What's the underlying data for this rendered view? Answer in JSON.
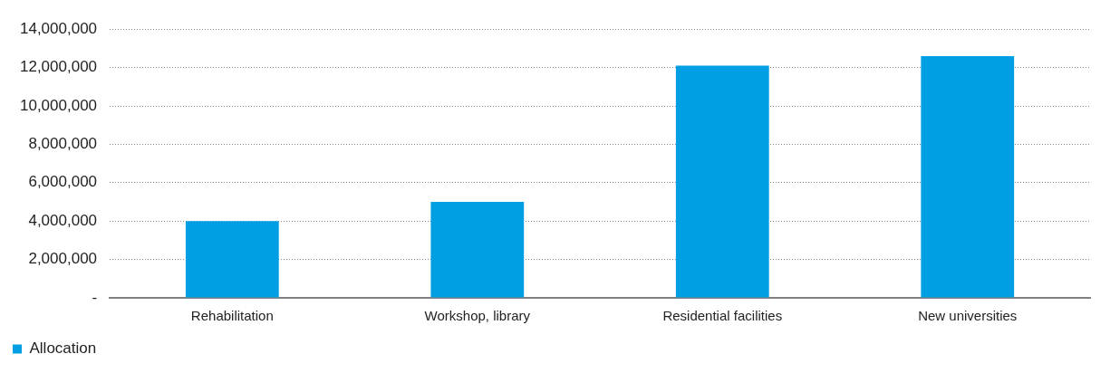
{
  "chart_data": {
    "type": "bar",
    "categories": [
      "Rehabilitation",
      "Workshop, library",
      "Residential facilities",
      "New universities"
    ],
    "series": [
      {
        "name": "Allocation",
        "color": "#009fe3",
        "values": [
          4000000,
          5000000,
          12100000,
          12600000
        ]
      }
    ],
    "ylim": [
      0,
      14000000
    ],
    "yticks": [
      {
        "value": 0,
        "label": "-"
      },
      {
        "value": 2000000,
        "label": "2,000,000"
      },
      {
        "value": 4000000,
        "label": "4,000,000"
      },
      {
        "value": 6000000,
        "label": "6,000,000"
      },
      {
        "value": 8000000,
        "label": "8,000,000"
      },
      {
        "value": 10000000,
        "label": "10,000,000"
      },
      {
        "value": 12000000,
        "label": "12,000,000"
      },
      {
        "value": 14000000,
        "label": "14,000,000"
      }
    ],
    "grid": "y",
    "legend": "bottom left"
  }
}
